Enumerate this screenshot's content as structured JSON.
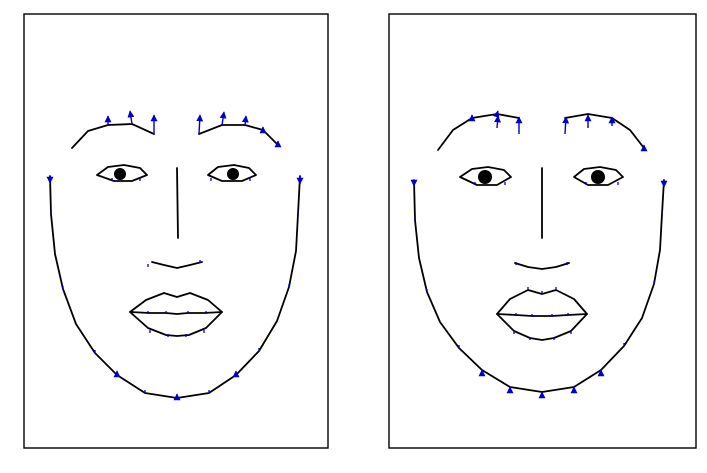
{
  "colors": {
    "background": "#ffffff",
    "contour": "#000000",
    "vector": "#0000cc"
  },
  "panels": [
    {
      "name": "left-face-panel",
      "icon": "face-icon",
      "variant": "narrow"
    },
    {
      "name": "right-face-panel",
      "icon": "face-icon",
      "variant": "wide"
    }
  ]
}
